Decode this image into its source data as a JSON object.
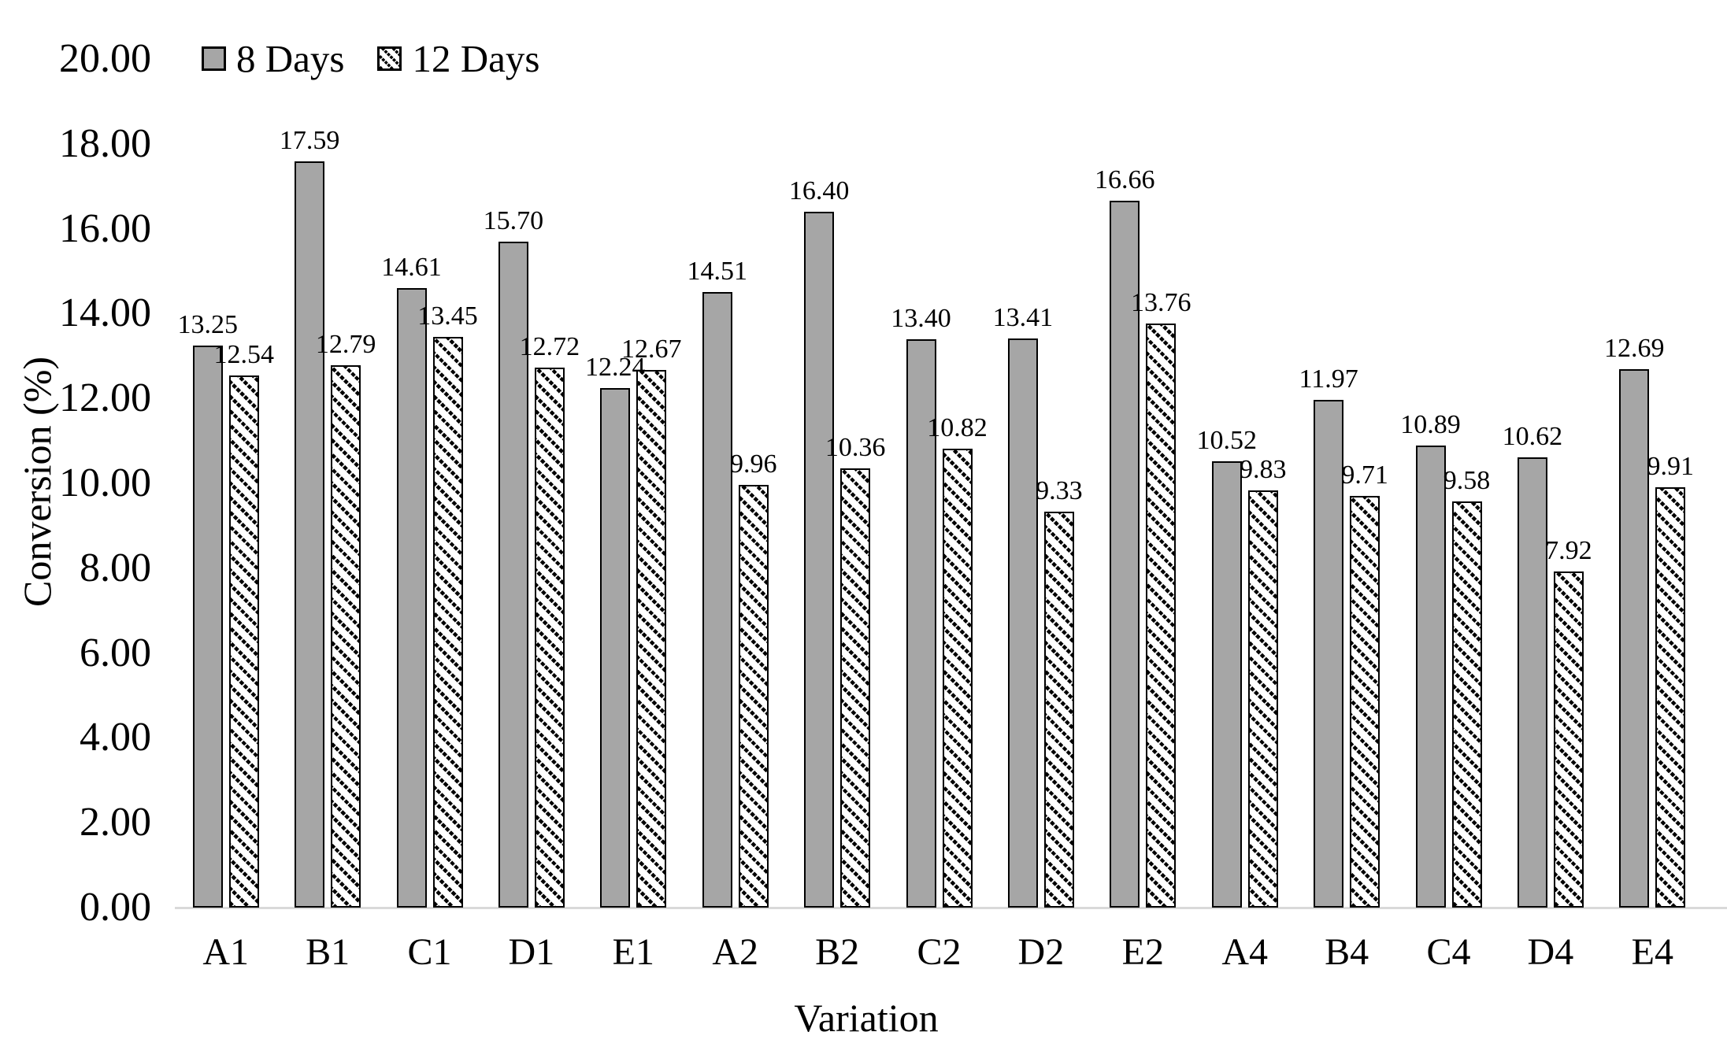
{
  "chart_data": {
    "type": "bar",
    "title": "",
    "xlabel": "Variation",
    "ylabel": "Conversion (%)",
    "ylim": [
      0,
      20
    ],
    "ytick_step": 2,
    "ytick_labels": [
      "0.00",
      "2.00",
      "4.00",
      "6.00",
      "8.00",
      "10.00",
      "12.00",
      "14.00",
      "16.00",
      "18.00",
      "20.00"
    ],
    "grid": false,
    "legend_position": "top-left",
    "data_labels": "outside-end, two decimals",
    "categories": [
      "A1",
      "B1",
      "C1",
      "D1",
      "E1",
      "A2",
      "B2",
      "C2",
      "D2",
      "E2",
      "A4",
      "B4",
      "C4",
      "D4",
      "E4"
    ],
    "series": [
      {
        "name": "8 Days",
        "pattern": "solid",
        "fill": "#a6a6a6",
        "values": [
          13.25,
          17.59,
          14.61,
          15.7,
          12.24,
          14.51,
          16.4,
          13.4,
          13.41,
          16.66,
          10.52,
          11.97,
          10.89,
          10.62,
          12.69
        ]
      },
      {
        "name": "12 Days",
        "pattern": "diagonal-hatch",
        "fill": "#ffffff",
        "values": [
          12.54,
          12.79,
          13.45,
          12.72,
          12.67,
          9.96,
          10.36,
          10.82,
          9.33,
          13.76,
          9.83,
          9.71,
          9.58,
          7.92,
          9.91
        ]
      }
    ]
  },
  "colors": {
    "background": "#ffffff",
    "series1_fill": "#a6a6a6",
    "bar_border": "#000000",
    "axis_line": "#d9d9d9",
    "text": "#000000"
  }
}
